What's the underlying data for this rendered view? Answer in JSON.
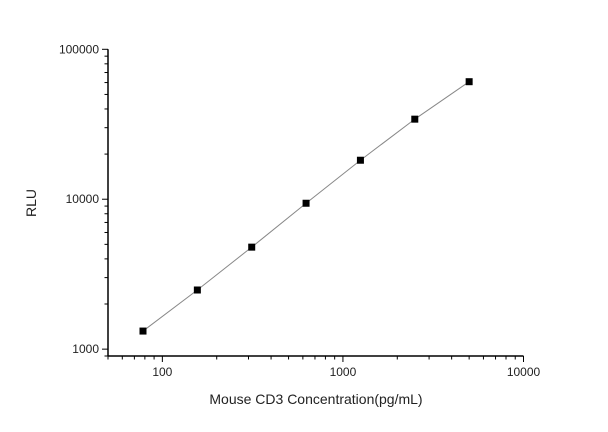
{
  "chart_data": {
    "type": "scatter",
    "title": "",
    "xlabel": "Mouse CD3 Concentration(pg/mL)",
    "ylabel": "RLU",
    "xscale": "log",
    "yscale": "log",
    "xlim": [
      50,
      10000
    ],
    "ylim": [
      900,
      100000
    ],
    "xticks": [
      "100",
      "1000",
      "10000"
    ],
    "yticks": [
      "1000",
      "10000",
      "100000"
    ],
    "grid": false,
    "legend": "none",
    "series": [
      {
        "x": [
          78.125,
          156.25,
          312.5,
          625,
          1250,
          2500,
          5000
        ],
        "y": [
          1320,
          2480,
          4790,
          9400,
          18200,
          34200,
          60800
        ],
        "marker": "square",
        "marker_color": "#000000",
        "line_color": "#888888",
        "connected": true
      }
    ]
  }
}
